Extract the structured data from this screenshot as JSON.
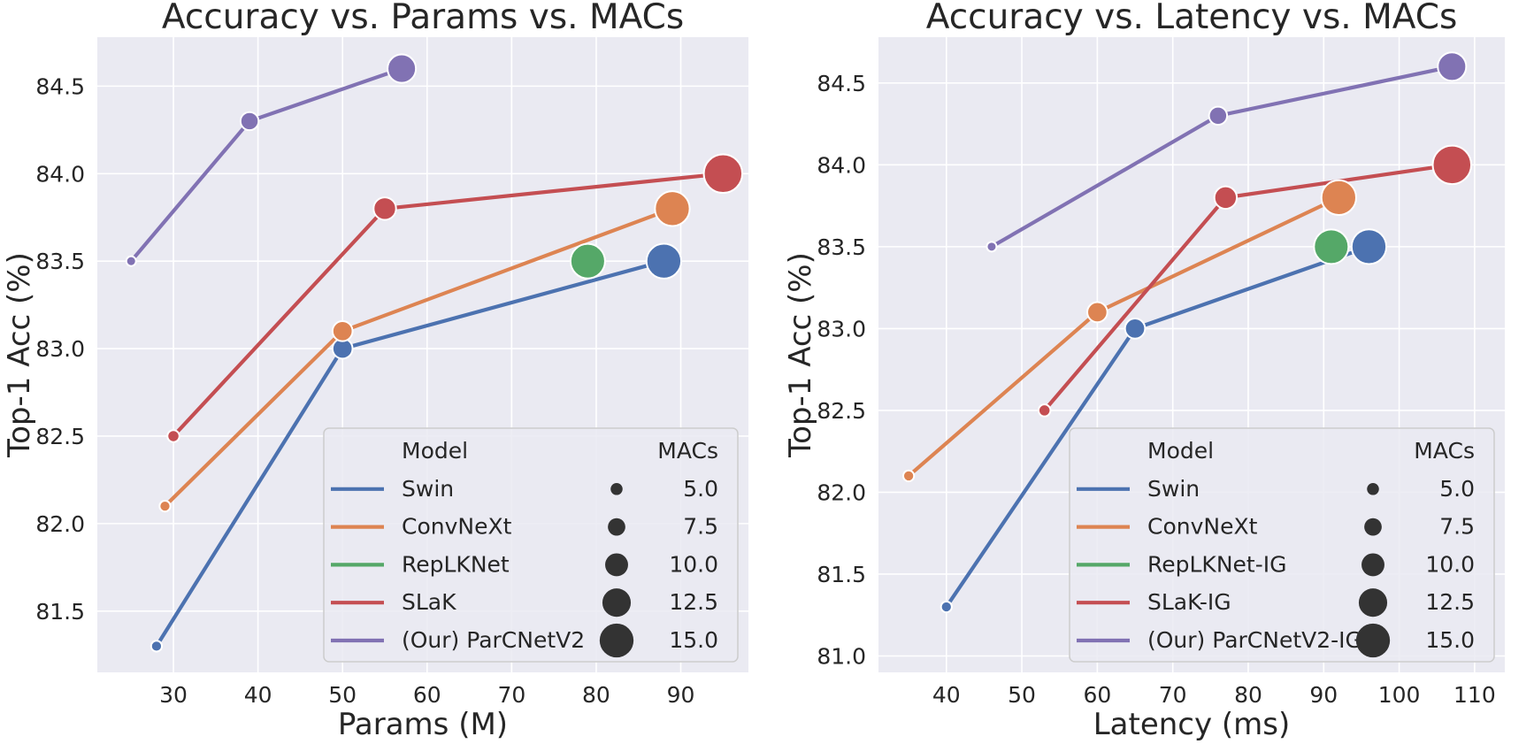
{
  "chart_data": [
    {
      "type": "scatter",
      "title": "Accuracy vs. Params vs. MACs",
      "xlabel": "Params (M)",
      "ylabel": "Top-1 Acc (%)",
      "xlim": [
        21,
        98
      ],
      "ylim": [
        81.15,
        84.78
      ],
      "xticks": [
        30,
        40,
        50,
        60,
        70,
        80,
        90
      ],
      "yticks": [
        81.5,
        82.0,
        82.5,
        83.0,
        83.5,
        84.0,
        84.5
      ],
      "grid": true,
      "series": [
        {
          "name": "Swin",
          "color": "#4c72b0",
          "points": [
            {
              "x": 28,
              "y": 81.3,
              "macs": 4.5
            },
            {
              "x": 50,
              "y": 83.0,
              "macs": 8.7
            },
            {
              "x": 88,
              "y": 83.5,
              "macs": 15.4
            }
          ]
        },
        {
          "name": "ConvNeXt",
          "color": "#dd8452",
          "points": [
            {
              "x": 29,
              "y": 82.1,
              "macs": 4.5
            },
            {
              "x": 50,
              "y": 83.1,
              "macs": 8.7
            },
            {
              "x": 89,
              "y": 83.8,
              "macs": 15.4
            }
          ]
        },
        {
          "name": "RepLKNet",
          "color": "#55a868",
          "points": [
            {
              "x": 79,
              "y": 83.5,
              "macs": 15.3
            }
          ]
        },
        {
          "name": "SLaK",
          "color": "#c44e52",
          "points": [
            {
              "x": 30,
              "y": 82.5,
              "macs": 5.0
            },
            {
              "x": 55,
              "y": 83.8,
              "macs": 9.8
            },
            {
              "x": 95,
              "y": 84.0,
              "macs": 17.1
            }
          ]
        },
        {
          "name": "(Our) ParCNetV2",
          "color": "#8172b3",
          "points": [
            {
              "x": 25,
              "y": 83.5,
              "macs": 4.0
            },
            {
              "x": 39,
              "y": 84.3,
              "macs": 7.8
            },
            {
              "x": 57,
              "y": 84.6,
              "macs": 12.5
            }
          ]
        }
      ],
      "legend": {
        "placement": "lower-right",
        "model_title": "Model",
        "size_title": "MACs",
        "size_entries": [
          "5.0",
          "7.5",
          "10.0",
          "12.5",
          "15.0"
        ]
      }
    },
    {
      "type": "scatter",
      "title": "Accuracy vs. Latency vs. MACs",
      "xlabel": "Latency (ms)",
      "ylabel": "Top-1 Acc (%)",
      "xlim": [
        31,
        114
      ],
      "ylim": [
        80.9,
        84.78
      ],
      "xticks": [
        40,
        50,
        60,
        70,
        80,
        90,
        100,
        110
      ],
      "yticks": [
        81.0,
        81.5,
        82.0,
        82.5,
        83.0,
        83.5,
        84.0,
        84.5
      ],
      "grid": true,
      "series": [
        {
          "name": "Swin",
          "color": "#4c72b0",
          "points": [
            {
              "x": 40,
              "y": 81.3,
              "macs": 4.5
            },
            {
              "x": 65,
              "y": 83.0,
              "macs": 8.7
            },
            {
              "x": 96,
              "y": 83.5,
              "macs": 15.4
            }
          ]
        },
        {
          "name": "ConvNeXt",
          "color": "#dd8452",
          "points": [
            {
              "x": 35,
              "y": 82.1,
              "macs": 4.5
            },
            {
              "x": 60,
              "y": 83.1,
              "macs": 8.7
            },
            {
              "x": 92,
              "y": 83.8,
              "macs": 15.4
            }
          ]
        },
        {
          "name": "RepLKNet-IG",
          "color": "#55a868",
          "points": [
            {
              "x": 91,
              "y": 83.5,
              "macs": 15.3
            }
          ]
        },
        {
          "name": "SLaK-IG",
          "color": "#c44e52",
          "points": [
            {
              "x": 53,
              "y": 82.5,
              "macs": 5.0
            },
            {
              "x": 77,
              "y": 83.8,
              "macs": 9.8
            },
            {
              "x": 107,
              "y": 84.0,
              "macs": 17.1
            }
          ]
        },
        {
          "name": "(Our) ParCNetV2-IG",
          "color": "#8172b3",
          "points": [
            {
              "x": 46,
              "y": 83.5,
              "macs": 4.0
            },
            {
              "x": 76,
              "y": 84.3,
              "macs": 7.8
            },
            {
              "x": 107,
              "y": 84.6,
              "macs": 12.5
            }
          ]
        }
      ],
      "legend": {
        "placement": "lower-right",
        "model_title": "Model",
        "size_title": "MACs",
        "size_entries": [
          "5.0",
          "7.5",
          "10.0",
          "12.5",
          "15.0"
        ]
      }
    }
  ]
}
